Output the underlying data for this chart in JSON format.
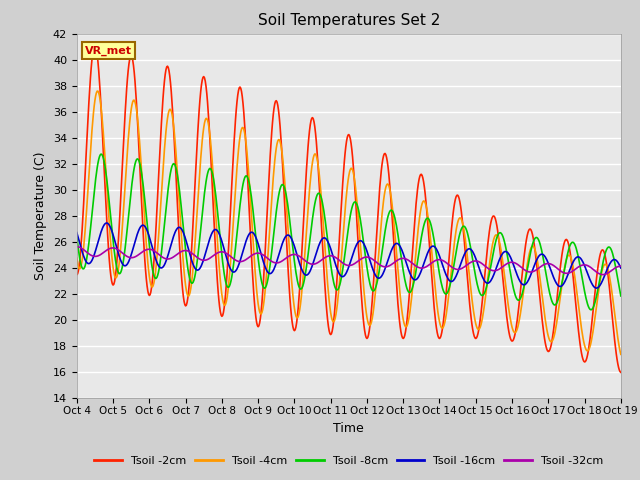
{
  "title": "Soil Temperatures Set 2",
  "xlabel": "Time",
  "ylabel": "Soil Temperature (C)",
  "ylim": [
    14,
    42
  ],
  "yticks": [
    14,
    16,
    18,
    20,
    22,
    24,
    26,
    28,
    30,
    32,
    34,
    36,
    38,
    40,
    42
  ],
  "annotation": "VR_met",
  "annotation_color": "#cc0000",
  "annotation_bg": "#ffff99",
  "annotation_border": "#996600",
  "fig_bg": "#d0d0d0",
  "plot_bg": "#e8e8e8",
  "series": [
    {
      "label": "Tsoil -2cm",
      "color": "#ff2200",
      "lw": 1.2
    },
    {
      "label": "Tsoil -4cm",
      "color": "#ff9900",
      "lw": 1.2
    },
    {
      "label": "Tsoil -8cm",
      "color": "#00cc00",
      "lw": 1.2
    },
    {
      "label": "Tsoil -16cm",
      "color": "#0000cc",
      "lw": 1.2
    },
    {
      "label": "Tsoil -32cm",
      "color": "#aa00aa",
      "lw": 1.2
    }
  ],
  "xtick_labels": [
    "Oct 4",
    "Oct 5",
    "Oct 6",
    "Oct 7",
    "Oct 8",
    "Oct 9",
    "Oct 10",
    "Oct 11",
    "Oct 12",
    "Oct 13",
    "Oct 14",
    "Oct 15",
    "Oct 16",
    "Oct 17",
    "Oct 18",
    "Oct 19"
  ],
  "grid_color": "#ffffff",
  "grid_lw": 1.0,
  "n_days": 15,
  "pts_per_day": 48
}
